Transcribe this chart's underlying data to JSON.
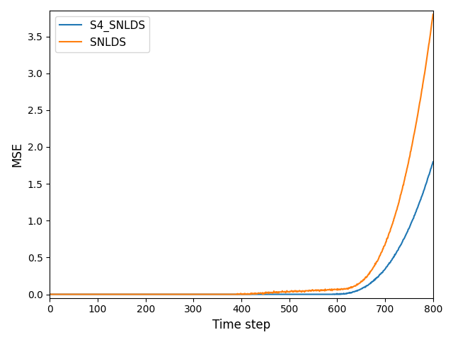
{
  "title": "",
  "xlabel": "Time step",
  "ylabel": "MSE",
  "xlim": [
    0,
    800
  ],
  "ylim": [
    -0.05,
    3.85
  ],
  "s4_snlds_color": "#1f77b4",
  "snlds_color": "#ff7f0e",
  "s4_snlds_label": "S4_SNLDS",
  "snlds_label": "SNLDS",
  "legend_loc": "upper left",
  "xticks": [
    0,
    100,
    200,
    300,
    400,
    500,
    600,
    700,
    800
  ],
  "yticks": [
    0.0,
    0.5,
    1.0,
    1.5,
    2.0,
    2.5,
    3.0,
    3.5
  ],
  "figsize": [
    6.4,
    4.84
  ],
  "dpi": 100,
  "linewidth": 1.5
}
